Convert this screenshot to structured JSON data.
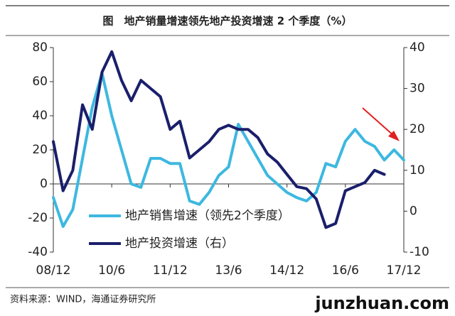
{
  "title": "图　地产销量增速领先地产投资增速 2 个季度（%）",
  "source": "资料来源：WIND，海通证券研究所",
  "watermark": "junzhuan.com",
  "chart_data": {
    "type": "line",
    "categories": [
      "08/12",
      null,
      null,
      null,
      null,
      null,
      "10/6",
      null,
      null,
      null,
      null,
      null,
      "11/12",
      null,
      null,
      null,
      null,
      null,
      "13/6",
      null,
      null,
      null,
      null,
      null,
      "14/12",
      null,
      null,
      null,
      null,
      null,
      "16/6",
      null,
      null,
      null,
      null,
      null,
      "17/12"
    ],
    "series": [
      {
        "name": "地产销售增速（领先2个季度）",
        "color": "#3db8e0",
        "axis": "y",
        "values": [
          -8,
          -25,
          -15,
          15,
          45,
          65,
          40,
          20,
          0,
          -2,
          15,
          15,
          12,
          12,
          -10,
          -12,
          -5,
          5,
          10,
          35,
          25,
          15,
          5,
          0,
          -5,
          -8,
          -10,
          -5,
          12,
          10,
          25,
          32,
          25,
          22,
          14,
          20,
          14
        ]
      },
      {
        "name": "地产投资增速（右）",
        "color": "#1a1f6b",
        "axis": "y2",
        "values": [
          17,
          5,
          10,
          26,
          20,
          34,
          39,
          32,
          27,
          32,
          30,
          28,
          20,
          22,
          13,
          15,
          17,
          20,
          21,
          20,
          20,
          18,
          14,
          12,
          9,
          6,
          5.5,
          3,
          -4,
          -3,
          5,
          6,
          7,
          10,
          9,
          null,
          null
        ]
      }
    ],
    "ylim": [
      -40,
      80
    ],
    "yticks": [
      -40,
      -20,
      0,
      20,
      40,
      60,
      80
    ],
    "y2lim": [
      -10,
      40
    ],
    "y2ticks": [
      -10,
      0,
      10,
      20,
      30,
      40
    ]
  }
}
